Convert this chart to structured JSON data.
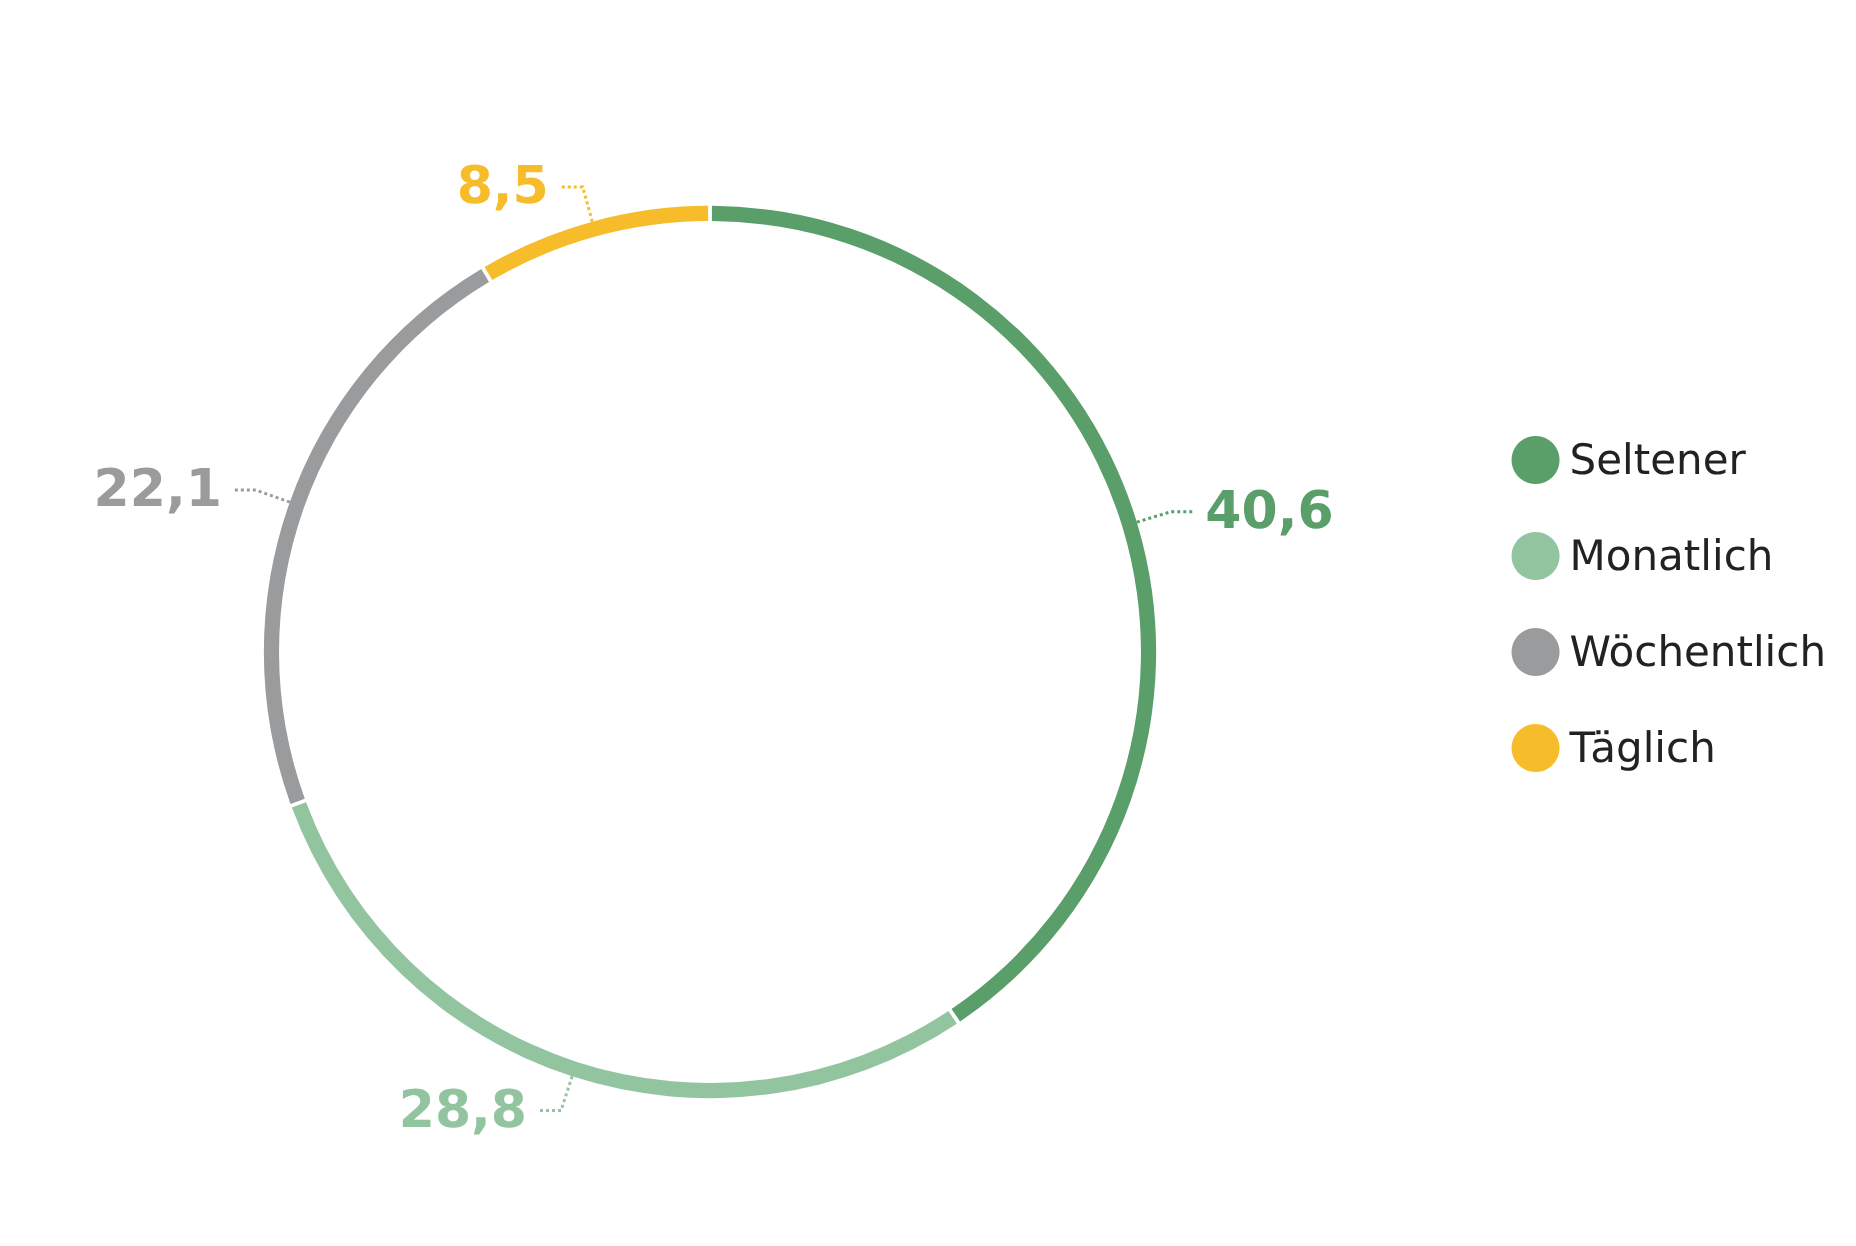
{
  "chart_data": {
    "type": "donut",
    "categories": [
      "Seltener",
      "Monatlich",
      "Wöchentlich",
      "Täglich"
    ],
    "values": [
      40.6,
      28.8,
      22.1,
      8.5
    ],
    "colors": [
      "#5a9e6a",
      "#93c4a0",
      "#9a9b9d",
      "#f7bc2a"
    ],
    "value_labels": [
      "40,6",
      "28,8",
      "22,1",
      "8,5"
    ],
    "legend": "right"
  }
}
